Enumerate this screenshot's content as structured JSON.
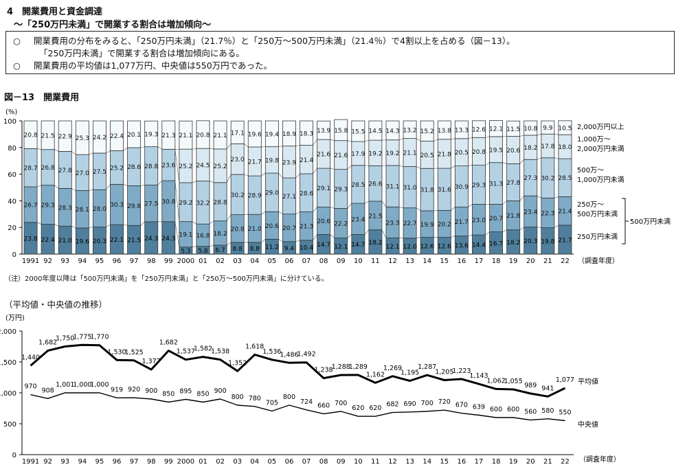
{
  "heading": {
    "section": "4　開業費用と資金調達",
    "subtitle": "～「250万円未満」で開業する割合は増加傾向～"
  },
  "summary": {
    "bullet_mark": "○",
    "line1": "開業費用の分布をみると、「250万円未満」（21.7％）と「250万～500万円未満」（21.4％）で4割以上を占める（図－13）。",
    "line1_cont": "「250万円未満」で開業する割合は増加傾向にある。",
    "line2": "開業費用の平均値は1,077万円、中央値は550万円であった。"
  },
  "figure_title": "図－13　開業費用",
  "note": "（注）2000年度以降は「500万円未満」を「250万円未満」と「250万～500万円未満」に分けている。",
  "line_chart_title": "（平均値・中央値の推移）",
  "colors": {
    "under250": "#4f7f9c",
    "from250to500": "#7fabc6",
    "from500to1000": "#b3d1e3",
    "from1000to2000": "#d9e9f2",
    "over2000": "#f4f9fc",
    "combined500": "#4f7f9c",
    "line_avg": "#000000",
    "line_median": "#000000"
  },
  "chart_data": [
    {
      "type": "bar",
      "stacked": true,
      "ylabel": "(%)",
      "ylim": [
        0,
        100
      ],
      "yticks": [
        0,
        20,
        40,
        60,
        80,
        100
      ],
      "x_suffix": "（調査年度）",
      "categories": [
        "1991",
        "92",
        "93",
        "94",
        "95",
        "96",
        "97",
        "98",
        "99",
        "2000",
        "01",
        "02",
        "03",
        "04",
        "05",
        "06",
        "07",
        "08",
        "09",
        "10",
        "11",
        "12",
        "13",
        "14",
        "15",
        "16",
        "17",
        "18",
        "19",
        "20",
        "21",
        "22"
      ],
      "series": [
        {
          "name": "250万円未満",
          "key": "under250",
          "values": [
            23.8,
            22.4,
            21.0,
            19.6,
            20.3,
            22.1,
            21.5,
            24.3,
            24.3,
            5.3,
            5.8,
            6.7,
            8.8,
            8.8,
            11.2,
            9.4,
            10.4,
            14.7,
            12.1,
            14.7,
            18.2,
            12.1,
            12.0,
            12.6,
            12.6,
            13.6,
            14.4,
            16.7,
            18.2,
            20.3,
            19.8,
            21.7
          ]
        },
        {
          "name": "250万～500万円未満",
          "key": "from250to500",
          "values": [
            26.7,
            29.3,
            28.3,
            28.1,
            28.0,
            30.3,
            29.8,
            27.5,
            30.8,
            19.1,
            16.8,
            18.2,
            20.8,
            21.0,
            20.6,
            20.7,
            21.3,
            20.6,
            22.2,
            23.4,
            21.5,
            23.3,
            22.7,
            19.9,
            20.2,
            21.7,
            23.0,
            20.7,
            21.8,
            23.4,
            22.3,
            21.4
          ]
        },
        {
          "name": "500万～1,000万円未満",
          "key": "from500to1000",
          "values": [
            28.7,
            26.8,
            27.8,
            27.0,
            27.5,
            25.2,
            28.6,
            28.8,
            23.6,
            29.2,
            32.2,
            28.8,
            30.2,
            28.9,
            29.0,
            27.1,
            28.6,
            29.1,
            29.3,
            28.5,
            26.6,
            31.1,
            31.0,
            31.8,
            31.6,
            30.9,
            29.3,
            31.3,
            27.8,
            27.3,
            30.2,
            28.5
          ]
        },
        {
          "name": "1,000万～2,000万円未満",
          "key": "from1000to2000",
          "values": [
            null,
            null,
            null,
            null,
            null,
            null,
            null,
            null,
            null,
            25.2,
            24.5,
            25.2,
            23.0,
            21.7,
            19.8,
            23.9,
            21.4,
            21.6,
            21.6,
            17.9,
            19.2,
            19.2,
            21.1,
            20.5,
            21.8,
            20.5,
            20.8,
            19.5,
            20.6,
            18.2,
            17.8,
            18.0
          ]
        },
        {
          "name": "2,000万円以上",
          "key": "over2000",
          "values": [
            20.8,
            21.5,
            22.9,
            25.3,
            24.2,
            22.4,
            20.1,
            19.3,
            21.3,
            21.1,
            20.8,
            21.1,
            17.1,
            19.6,
            19.4,
            18.9,
            18.3,
            13.9,
            15.8,
            15.5,
            14.5,
            14.3,
            13.2,
            15.2,
            13.8,
            13.3,
            12.6,
            12.1,
            11.5,
            10.8,
            9.9,
            10.5
          ]
        }
      ],
      "legend_labels": {
        "over2000": "2,000万円以上",
        "from1000to2000_1": "1,000万～",
        "from1000to2000_2": "2,000万円未満",
        "from500to1000_1": "500万～",
        "from500to1000_2": "1,000万円未満",
        "from250to500_1": "250万～",
        "from250to500_2": "500万円未満",
        "under250": "250万円未満",
        "combined": "500万円未満"
      }
    },
    {
      "type": "line",
      "ylabel": "(万円)",
      "ylim": [
        0,
        2000
      ],
      "yticks": [
        0,
        500,
        1000,
        1500,
        2000
      ],
      "ytick_labels": [
        "0",
        "500",
        "1,000",
        "1,500",
        "2,000"
      ],
      "x_suffix": "（調査年度）",
      "categories": [
        "1991",
        "92",
        "93",
        "94",
        "95",
        "96",
        "97",
        "98",
        "99",
        "2000",
        "01",
        "02",
        "03",
        "04",
        "05",
        "06",
        "07",
        "08",
        "09",
        "10",
        "11",
        "12",
        "13",
        "14",
        "15",
        "16",
        "17",
        "18",
        "19",
        "20",
        "21",
        "22"
      ],
      "series": [
        {
          "name": "平均値",
          "key": "avg",
          "values": [
            1440,
            1682,
            1750,
            1775,
            1770,
            1530,
            1525,
            1377,
            1682,
            1537,
            1582,
            1538,
            1352,
            1618,
            1536,
            1486,
            1492,
            1238,
            1288,
            1289,
            1162,
            1269,
            1195,
            1287,
            1205,
            1223,
            1143,
            1062,
            1055,
            989,
            941,
            1077
          ],
          "labels": [
            "1,440",
            "1,682",
            "1,750",
            "1,775",
            "1,770",
            "1,530",
            "1,525",
            "1,377",
            "1,682",
            "1,537",
            "1,582",
            "1,538",
            "1,352",
            "1,618",
            "1,536",
            "1,486",
            "1,492",
            "1,238",
            "1,288",
            "1,289",
            "1,162",
            "1,269",
            "1,195",
            "1,287",
            "1,205",
            "1,223",
            "1,143",
            "1,062",
            "1,055",
            "989",
            "941",
            "1,077"
          ]
        },
        {
          "name": "中央値",
          "key": "median",
          "values": [
            970,
            908,
            1001,
            1000,
            1000,
            919,
            920,
            900,
            850,
            895,
            850,
            900,
            800,
            780,
            705,
            800,
            724,
            660,
            700,
            620,
            620,
            682,
            690,
            700,
            720,
            670,
            639,
            600,
            600,
            560,
            580,
            550
          ],
          "labels": [
            "970",
            "908",
            "1,001",
            "1,000",
            "1,000",
            "919",
            "920",
            "900",
            "850",
            "895",
            "850",
            "900",
            "800",
            "780",
            "705",
            "800",
            "724",
            "660",
            "700",
            "620",
            "620",
            "682",
            "690",
            "700",
            "720",
            "670",
            "639",
            "600",
            "600",
            "560",
            "580",
            "550"
          ]
        }
      ]
    }
  ]
}
